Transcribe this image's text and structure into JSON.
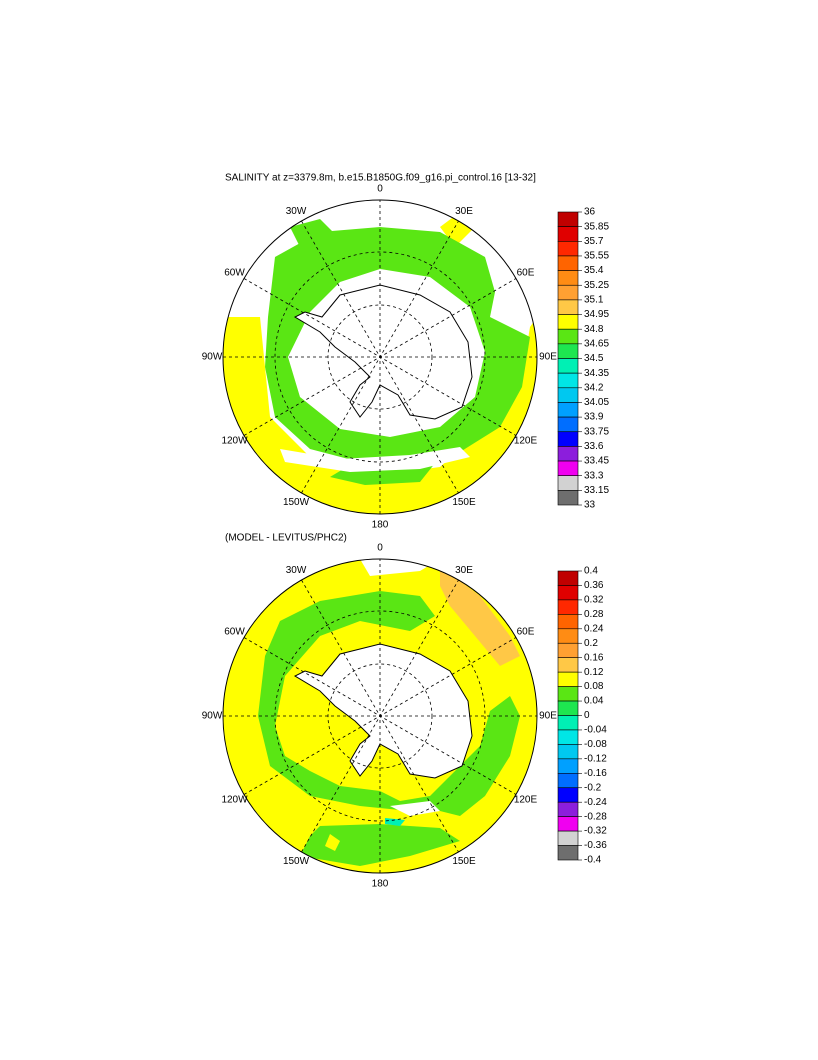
{
  "panels": [
    {
      "title": "SALINITY at z=3379.8m, b.e15.B1850G.f09_g16.pi_control.16 [13-32]",
      "longitude_labels": [
        "0",
        "30E",
        "60E",
        "90E",
        "120E",
        "150E",
        "180",
        "150W",
        "120W",
        "90W",
        "60W",
        "30W"
      ],
      "colorbar": {
        "levels": [
          36,
          35.85,
          35.7,
          35.55,
          35.4,
          35.25,
          35.1,
          34.95,
          34.8,
          34.65,
          34.5,
          34.35,
          34.2,
          34.05,
          33.9,
          33.75,
          33.6,
          33.45,
          33.3,
          33.15,
          33
        ],
        "colors": [
          "#c00000",
          "#e00000",
          "#ff2800",
          "#ff6400",
          "#ff8c14",
          "#ffa032",
          "#ffc846",
          "#ffff00",
          "#5ae614",
          "#1ee650",
          "#00f0b4",
          "#00e6e6",
          "#00c8f0",
          "#00a0ff",
          "#006eff",
          "#0000ff",
          "#8c1edc",
          "#f000f0",
          "#d2d2d2",
          "#6e6e6e"
        ]
      }
    },
    {
      "title": "(MODEL - LEVITUS/PHC2)",
      "longitude_labels": [
        "0",
        "30E",
        "60E",
        "90E",
        "120E",
        "150E",
        "180",
        "150W",
        "120W",
        "90W",
        "60W",
        "30W"
      ],
      "colorbar": {
        "levels": [
          0.4,
          0.36,
          0.32,
          0.28,
          0.24,
          0.2,
          0.16,
          0.12,
          0.08,
          0.04,
          0,
          -0.04,
          -0.08,
          -0.12,
          -0.16,
          -0.2,
          -0.24,
          -0.28,
          -0.32,
          -0.36,
          -0.4
        ],
        "colors": [
          "#c00000",
          "#e00000",
          "#ff2800",
          "#ff6400",
          "#ff8c14",
          "#ffa032",
          "#ffc846",
          "#ffff00",
          "#5ae614",
          "#1ee650",
          "#00f0b4",
          "#00e6e6",
          "#00c8f0",
          "#00a0ff",
          "#006eff",
          "#0000ff",
          "#8c1edc",
          "#f000f0",
          "#d2d2d2",
          "#6e6e6e"
        ]
      }
    }
  ]
}
